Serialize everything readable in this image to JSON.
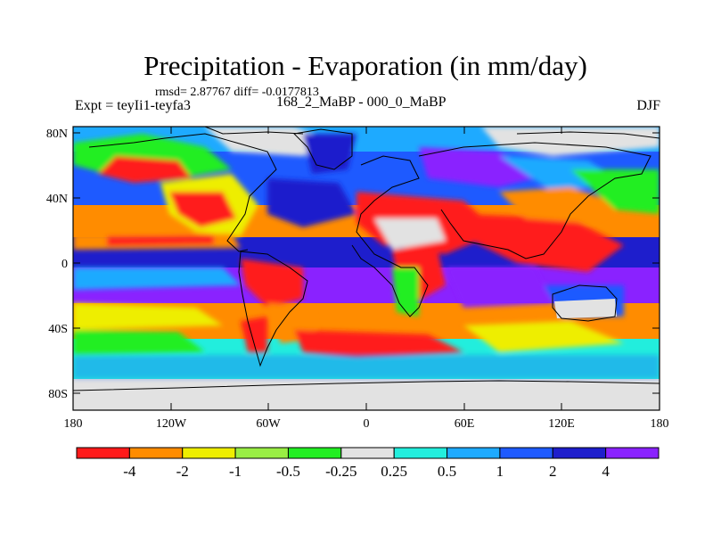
{
  "title": "Precipitation - Evaporation (in mm/day)",
  "stats": "rmsd= 2.87767 diff= -0.0177813",
  "expt": "Expt = teyIi1-teyfa3",
  "period": "168_2_MaBP - 000_0_MaBP",
  "season": "DJF",
  "lat_labels": [
    "80N",
    "40N",
    "0",
    "40S",
    "80S"
  ],
  "lon_labels": [
    "180",
    "120W",
    "60W",
    "0",
    "60E",
    "120E",
    "180"
  ],
  "colorbar": {
    "colors": [
      "#ff1a1a",
      "#ff8c00",
      "#eeee00",
      "#99ee44",
      "#22ee22",
      "#e2e2e2",
      "#22eedd",
      "#1eaaff",
      "#1e5aff",
      "#1e1ecc",
      "#8a22ff"
    ],
    "labels": [
      "-4",
      "-2",
      "-1",
      "-0.5",
      "-0.25",
      "0.25",
      "0.5",
      "1",
      "2",
      "4"
    ]
  },
  "field_colors": {
    "red": "#ff1a1a",
    "orange": "#ff8c00",
    "yellow": "#eeee00",
    "lightgreen": "#99ee44",
    "green": "#22ee22",
    "grey": "#e2e2e2",
    "cyan": "#22eedd",
    "lightblue": "#1eaaff",
    "blue": "#1e5aff",
    "darkblue": "#1e1ecc",
    "purple": "#8a22ff"
  }
}
